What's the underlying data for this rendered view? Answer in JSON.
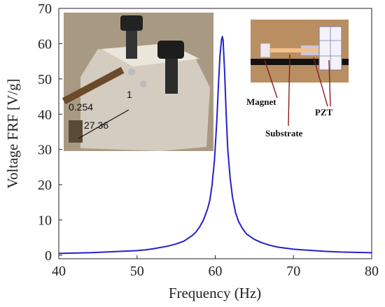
{
  "chart_data": {
    "type": "line",
    "xlabel": "Frequency (Hz)",
    "ylabel": "Voltage FRF [V/g]",
    "xlim": [
      40,
      80
    ],
    "ylim": [
      -1,
      70
    ],
    "xticks": [
      40,
      50,
      60,
      70,
      80
    ],
    "yticks": [
      0,
      10,
      20,
      30,
      40,
      50,
      60,
      70
    ],
    "grid": false,
    "color": "#2222cc",
    "series": [
      {
        "x": [
          40,
          42,
          44,
          46,
          48,
          50,
          51,
          52,
          53,
          54,
          55,
          56,
          57,
          57.5,
          58,
          58.5,
          59,
          59.3,
          59.6,
          59.9,
          60.2,
          60.4,
          60.6,
          60.8,
          60.9,
          61.0,
          61.2,
          61.4,
          61.6,
          61.9,
          62.2,
          62.6,
          63,
          63.5,
          64,
          65,
          66,
          67,
          68,
          69,
          70,
          72,
          74,
          76,
          78,
          80
        ],
        "y": [
          0.5,
          0.6,
          0.7,
          0.9,
          1.1,
          1.3,
          1.5,
          1.8,
          2.2,
          2.6,
          3.2,
          4.0,
          5.5,
          6.5,
          8.0,
          10.0,
          13.0,
          15.5,
          20.0,
          27.0,
          38.0,
          48.0,
          56.5,
          61.0,
          62.0,
          61.0,
          52.0,
          40.0,
          30.0,
          22.0,
          16.5,
          12.0,
          9.5,
          7.5,
          6.0,
          4.5,
          3.5,
          2.8,
          2.3,
          2.0,
          1.7,
          1.4,
          1.1,
          0.9,
          0.8,
          0.7
        ]
      }
    ],
    "annotations": {
      "photo_labels": [
        "0.254",
        "1",
        "27.36"
      ],
      "inset_labels": [
        "Magnet",
        "Substrate",
        "PZT"
      ]
    }
  }
}
